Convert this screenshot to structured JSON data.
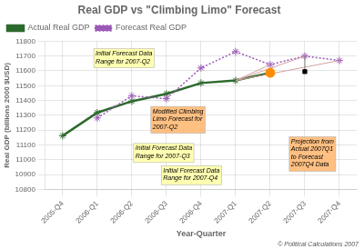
{
  "chart_data": {
    "type": "line",
    "title": "Real GDP vs \"Climbing Limo\" Forecast",
    "x_label": "Year-Quarter",
    "y_label": "Real GDP (billions 2000 $USD)",
    "categories": [
      "2005-Q4",
      "2006-Q1",
      "2006-Q2",
      "2006-Q3",
      "2006-Q4",
      "2007-Q1",
      "2007-Q2",
      "2007-Q3",
      "2007-Q4"
    ],
    "series": [
      {
        "name": "Actual Real GDP",
        "color": "#2d6a2d",
        "marker": "star",
        "line_style": "solid",
        "values": [
          11162,
          11318,
          11395,
          11445,
          11518,
          11535,
          11587,
          null,
          null
        ]
      },
      {
        "name": "Forecast Real GDP",
        "color": "#9b59b6",
        "marker": "star",
        "line_style": "dotted",
        "values": [
          null,
          11282,
          11432,
          11412,
          11620,
          11730,
          11642,
          11700,
          11670
        ]
      },
      {
        "color": "#d4a0a0",
        "line_style": "solid",
        "x": [
          "2007-Q1",
          "2007-Q2"
        ],
        "values": [
          11535,
          11642
        ]
      },
      {
        "color": "#d4a0a0",
        "line_style": "solid",
        "x": [
          "2007-Q1",
          "2007-Q3"
        ],
        "values": [
          11535,
          11700
        ]
      },
      {
        "color": "#d4a0a0",
        "line_style": "solid",
        "x": [
          "2007-Q1",
          "2007-Q4"
        ],
        "values": [
          11535,
          11670
        ]
      },
      {
        "color": "gray",
        "line_style": "solid",
        "x": [
          "2007-Q3",
          "2007-Q3"
        ],
        "values": [
          11595,
          11700
        ]
      },
      {
        "type": "scatter",
        "color": "black",
        "marker": "square",
        "x": [
          "2007-Q3"
        ],
        "values": [
          11595
        ]
      },
      {
        "type": "scatter",
        "color": "#ff8c00",
        "marker": "circle",
        "x": [
          "2007-Q2"
        ],
        "values": [
          11587
        ]
      }
    ],
    "annotations": [
      "Initial Forecast Data\nRange for 2007-Q2",
      "Modified Climbing\nLimo Forecast for\n2007-Q2",
      "Initial Forecast Data\nRange for 2007-Q3",
      "Initial Forecast Data\nRange for 2007-Q4",
      "Projection from\nActual 2007Q1\nto Forecast\n2007Q4 Data",
      "© Political Calculations 2007"
    ],
    "ylim": [
      10800,
      11800
    ],
    "yticks": [
      10800,
      10900,
      11000,
      11100,
      11200,
      11300,
      11400,
      11500,
      11600,
      11700,
      11800
    ],
    "grid": true,
    "legend": "upper left"
  }
}
